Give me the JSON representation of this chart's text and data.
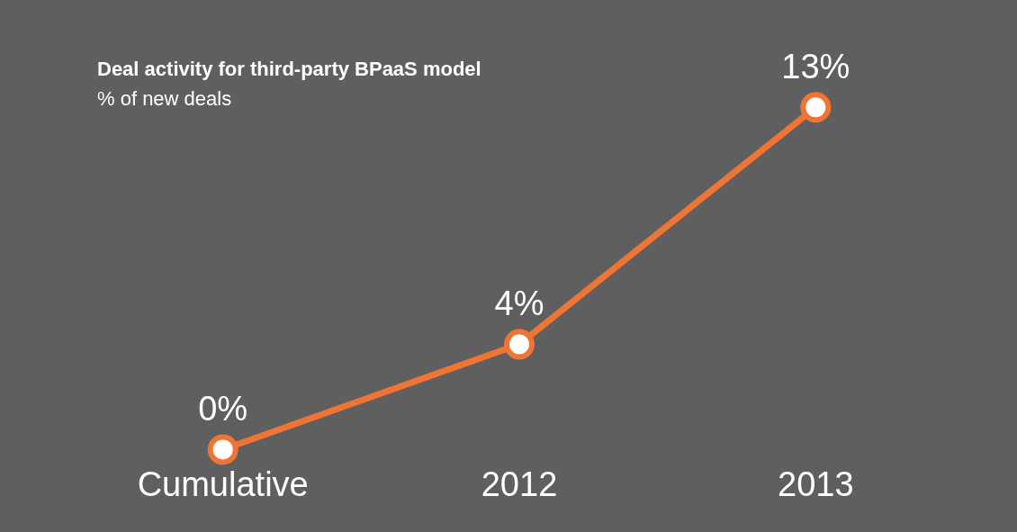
{
  "chart_data": {
    "type": "line",
    "title": "Deal activity for third-party BPaaS model",
    "subtitle": "% of new deals",
    "categories": [
      "Cumulative",
      "2012",
      "2013"
    ],
    "series": [
      {
        "color": "#f07535",
        "values": [
          0,
          4,
          13
        ],
        "value_labels": [
          "0%",
          "4%",
          "13%"
        ]
      }
    ],
    "marker": "circle",
    "grid": false,
    "legend": false
  }
}
